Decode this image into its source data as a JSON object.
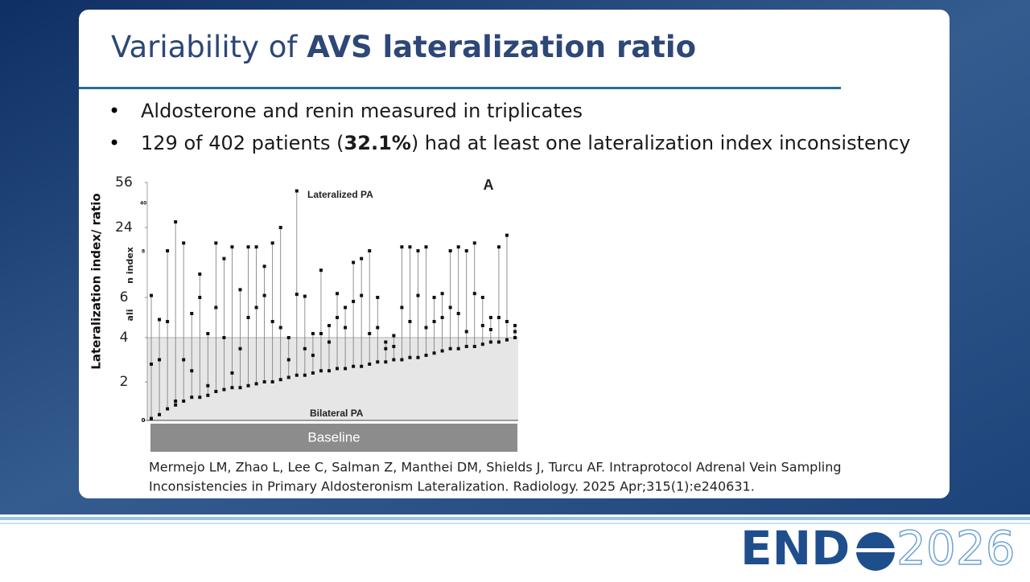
{
  "slide": {
    "title": {
      "normal": "Variability of ",
      "bold": "AVS lateralization ratio"
    },
    "bullets": [
      {
        "parts": [
          "Aldosterone and renin measured in triplicates"
        ]
      },
      {
        "parts": [
          "129 of 402 patients (",
          "32.1%",
          ") had at least one lateralization index inconsistency"
        ]
      }
    ],
    "citation": [
      "Mermejo LM, Zhao L, Lee C, Salman Z, Manthei DM, Shields J, Turcu AF. Intraprotocol Adrenal Vein Sampling",
      "Inconsistencies in Primary Aldosteronism Lateralization. Radiology. 2025 Apr;315(1):e240631."
    ],
    "logo": {
      "left": "END",
      "right": "2026"
    }
  },
  "chart_data": {
    "type": "dot-range",
    "y_label": "Lateralization index/ ratio",
    "panel_label": "A",
    "upper_label": "Lateralized PA",
    "lower_label": "Bilateral PA",
    "footer_label": "Baseline",
    "image_fragments": [
      "40",
      "8",
      "n index",
      "ali"
    ],
    "ylim": [
      0,
      56
    ],
    "yticks": [
      0,
      2,
      4,
      6,
      24,
      56
    ],
    "threshold": 4,
    "color": "#111111",
    "low": [
      0.1,
      0.3,
      0.6,
      0.8,
      1.0,
      1.2,
      1.2,
      1.3,
      1.5,
      1.6,
      1.7,
      1.7,
      1.8,
      1.9,
      2.0,
      2.0,
      2.1,
      2.2,
      2.3,
      2.3,
      2.4,
      2.5,
      2.5,
      2.6,
      2.6,
      2.7,
      2.7,
      2.8,
      2.9,
      2.9,
      3.0,
      3.0,
      3.1,
      3.1,
      3.2,
      3.3,
      3.4,
      3.5,
      3.5,
      3.6,
      3.6,
      3.7,
      3.8,
      3.8,
      3.9,
      4.0
    ],
    "mid": [
      2.8,
      3,
      4.8,
      1,
      3,
      2.5,
      6,
      1.8,
      5.5,
      4,
      2.4,
      3.5,
      5,
      5.5,
      6.5,
      4.8,
      4.5,
      3,
      6.8,
      3.5,
      3.2,
      4.2,
      3.8,
      5,
      4.5,
      5.8,
      6.5,
      4.2,
      4.5,
      3.5,
      3.6,
      5.5,
      4.8,
      6.5,
      4.5,
      4.8,
      5,
      5.5,
      5.2,
      4.3,
      7,
      4.6,
      4.4,
      5,
      4.8,
      4.3
    ],
    "high": [
      6.5,
      4.9,
      18,
      28,
      20,
      5.2,
      12,
      4.2,
      20,
      16,
      19,
      8,
      19,
      19,
      14,
      20,
      24,
      4,
      50,
      6.3,
      4.2,
      13,
      4.6,
      7,
      5.5,
      15,
      16,
      18,
      6,
      3.8,
      4.1,
      19,
      19,
      18,
      19,
      6,
      7,
      18,
      19,
      18,
      20,
      6,
      5,
      19,
      22,
      4.6
    ]
  }
}
